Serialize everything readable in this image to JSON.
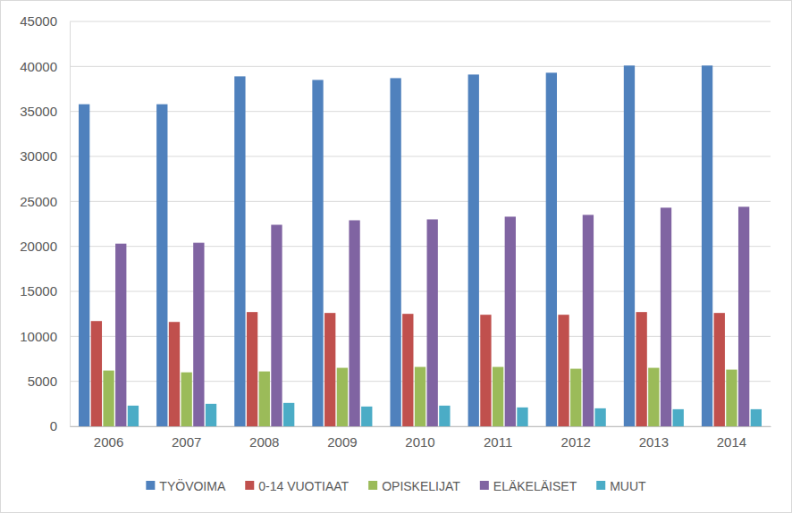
{
  "chart_data": {
    "type": "bar",
    "categories": [
      "2006",
      "2007",
      "2008",
      "2009",
      "2010",
      "2011",
      "2012",
      "2013",
      "2014"
    ],
    "series": [
      {
        "name": "TYÖVOIMA",
        "color": "#4f81bd",
        "values": [
          35800,
          35800,
          38900,
          38500,
          38700,
          39100,
          39300,
          40100,
          40100
        ]
      },
      {
        "name": "0-14 VUOTIAAT",
        "color": "#c0504d",
        "values": [
          11700,
          11600,
          12700,
          12600,
          12500,
          12400,
          12400,
          12700,
          12600
        ]
      },
      {
        "name": "OPISKELIJAT",
        "color": "#9bbb59",
        "values": [
          6200,
          6000,
          6100,
          6500,
          6600,
          6600,
          6400,
          6500,
          6300
        ]
      },
      {
        "name": "ELÄKELÄISET",
        "color": "#8064a2",
        "values": [
          20300,
          20400,
          22400,
          22900,
          23000,
          23300,
          23500,
          24300,
          24400
        ]
      },
      {
        "name": "MUUT",
        "color": "#4bacc6",
        "values": [
          2300,
          2500,
          2600,
          2200,
          2300,
          2100,
          2000,
          1900,
          1900
        ]
      }
    ],
    "ylim": [
      0,
      45000
    ],
    "yticks": [
      0,
      5000,
      10000,
      15000,
      20000,
      25000,
      30000,
      35000,
      40000,
      45000
    ],
    "grid": true,
    "legend": "bottom"
  }
}
